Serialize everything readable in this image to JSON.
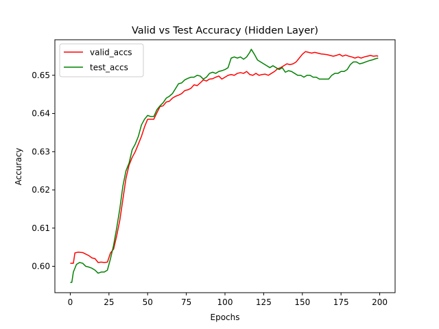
{
  "chart_data": {
    "type": "line",
    "title": "Valid vs Test Accuracy (Hidden Layer)",
    "xlabel": "Epochs",
    "ylabel": "Accuracy",
    "xlim": [
      -9.95,
      209.95
    ],
    "ylim": [
      0.5931,
      0.6593
    ],
    "xticks": [
      0,
      25,
      50,
      75,
      100,
      125,
      150,
      175,
      200
    ],
    "yticks": [
      0.6,
      0.61,
      0.62,
      0.63,
      0.64,
      0.65
    ],
    "ytick_labels": [
      "0.60",
      "0.61",
      "0.62",
      "0.63",
      "0.64",
      "0.65"
    ],
    "grid": false,
    "legend_position": "upper-left",
    "series": [
      {
        "name": "valid_accs",
        "color": "#ff0000",
        "points": [
          [
            0,
            0.6008
          ],
          [
            2,
            0.6008
          ],
          [
            3,
            0.6035
          ],
          [
            5,
            0.6037
          ],
          [
            8,
            0.6036
          ],
          [
            10,
            0.6032
          ],
          [
            12,
            0.6028
          ],
          [
            14,
            0.6022
          ],
          [
            16,
            0.602
          ],
          [
            18,
            0.601
          ],
          [
            20,
            0.6011
          ],
          [
            22,
            0.601
          ],
          [
            24,
            0.6011
          ],
          [
            26,
            0.6035
          ],
          [
            28,
            0.6045
          ],
          [
            30,
            0.608
          ],
          [
            32,
            0.612
          ],
          [
            34,
            0.6175
          ],
          [
            36,
            0.623
          ],
          [
            38,
            0.6265
          ],
          [
            40,
            0.6285
          ],
          [
            42,
            0.63
          ],
          [
            44,
            0.632
          ],
          [
            46,
            0.634
          ],
          [
            48,
            0.6365
          ],
          [
            50,
            0.6385
          ],
          [
            52,
            0.6385
          ],
          [
            54,
            0.6385
          ],
          [
            56,
            0.6402
          ],
          [
            58,
            0.6418
          ],
          [
            60,
            0.642
          ],
          [
            62,
            0.643
          ],
          [
            64,
            0.6432
          ],
          [
            66,
            0.644
          ],
          [
            68,
            0.6445
          ],
          [
            70,
            0.6448
          ],
          [
            72,
            0.6452
          ],
          [
            74,
            0.646
          ],
          [
            76,
            0.6462
          ],
          [
            78,
            0.6466
          ],
          [
            80,
            0.6475
          ],
          [
            82,
            0.6473
          ],
          [
            84,
            0.648
          ],
          [
            86,
            0.6488
          ],
          [
            88,
            0.6485
          ],
          [
            90,
            0.649
          ],
          [
            92,
            0.6491
          ],
          [
            94,
            0.6495
          ],
          [
            96,
            0.6498
          ],
          [
            98,
            0.649
          ],
          [
            100,
            0.6495
          ],
          [
            102,
            0.65
          ],
          [
            104,
            0.6502
          ],
          [
            106,
            0.65
          ],
          [
            108,
            0.6505
          ],
          [
            110,
            0.6507
          ],
          [
            112,
            0.6505
          ],
          [
            114,
            0.651
          ],
          [
            116,
            0.6502
          ],
          [
            118,
            0.65
          ],
          [
            120,
            0.6505
          ],
          [
            122,
            0.65
          ],
          [
            124,
            0.6502
          ],
          [
            126,
            0.6503
          ],
          [
            128,
            0.65
          ],
          [
            130,
            0.6505
          ],
          [
            132,
            0.651
          ],
          [
            134,
            0.6517
          ],
          [
            136,
            0.652
          ],
          [
            138,
            0.6525
          ],
          [
            140,
            0.653
          ],
          [
            142,
            0.6528
          ],
          [
            144,
            0.653
          ],
          [
            146,
            0.6535
          ],
          [
            148,
            0.6545
          ],
          [
            150,
            0.6555
          ],
          [
            152,
            0.6562
          ],
          [
            154,
            0.656
          ],
          [
            156,
            0.6558
          ],
          [
            158,
            0.656
          ],
          [
            160,
            0.6558
          ],
          [
            162,
            0.6556
          ],
          [
            164,
            0.6555
          ],
          [
            166,
            0.6554
          ],
          [
            168,
            0.6552
          ],
          [
            170,
            0.655
          ],
          [
            172,
            0.6552
          ],
          [
            174,
            0.6555
          ],
          [
            176,
            0.655
          ],
          [
            178,
            0.6553
          ],
          [
            180,
            0.655
          ],
          [
            182,
            0.6548
          ],
          [
            184,
            0.6545
          ],
          [
            186,
            0.6548
          ],
          [
            188,
            0.6545
          ],
          [
            190,
            0.6548
          ],
          [
            192,
            0.655
          ],
          [
            194,
            0.6552
          ],
          [
            196,
            0.655
          ],
          [
            198,
            0.6551
          ],
          [
            199,
            0.655
          ]
        ]
      },
      {
        "name": "test_accs",
        "color": "#008000",
        "points": [
          [
            0,
            0.5958
          ],
          [
            1,
            0.5958
          ],
          [
            2,
            0.5985
          ],
          [
            4,
            0.6005
          ],
          [
            6,
            0.601
          ],
          [
            8,
            0.6008
          ],
          [
            10,
            0.6
          ],
          [
            12,
            0.5998
          ],
          [
            14,
            0.5995
          ],
          [
            16,
            0.599
          ],
          [
            18,
            0.5982
          ],
          [
            20,
            0.5985
          ],
          [
            22,
            0.5985
          ],
          [
            24,
            0.599
          ],
          [
            26,
            0.602
          ],
          [
            28,
            0.6055
          ],
          [
            30,
            0.61
          ],
          [
            32,
            0.615
          ],
          [
            34,
            0.621
          ],
          [
            36,
            0.625
          ],
          [
            38,
            0.627
          ],
          [
            40,
            0.6305
          ],
          [
            42,
            0.632
          ],
          [
            44,
            0.634
          ],
          [
            46,
            0.637
          ],
          [
            48,
            0.6385
          ],
          [
            50,
            0.6395
          ],
          [
            52,
            0.6392
          ],
          [
            54,
            0.6392
          ],
          [
            56,
            0.641
          ],
          [
            58,
            0.642
          ],
          [
            60,
            0.6428
          ],
          [
            62,
            0.644
          ],
          [
            64,
            0.6445
          ],
          [
            66,
            0.6452
          ],
          [
            68,
            0.6465
          ],
          [
            70,
            0.6478
          ],
          [
            72,
            0.648
          ],
          [
            74,
            0.6488
          ],
          [
            76,
            0.6492
          ],
          [
            78,
            0.6495
          ],
          [
            80,
            0.6495
          ],
          [
            82,
            0.65
          ],
          [
            84,
            0.6498
          ],
          [
            86,
            0.649
          ],
          [
            88,
            0.6495
          ],
          [
            90,
            0.6505
          ],
          [
            92,
            0.6508
          ],
          [
            94,
            0.6505
          ],
          [
            96,
            0.651
          ],
          [
            98,
            0.6512
          ],
          [
            100,
            0.6515
          ],
          [
            102,
            0.652
          ],
          [
            104,
            0.6545
          ],
          [
            106,
            0.6548
          ],
          [
            108,
            0.6545
          ],
          [
            110,
            0.6548
          ],
          [
            112,
            0.6542
          ],
          [
            114,
            0.6548
          ],
          [
            116,
            0.656
          ],
          [
            117,
            0.6568
          ],
          [
            119,
            0.6555
          ],
          [
            121,
            0.654
          ],
          [
            123,
            0.6535
          ],
          [
            125,
            0.653
          ],
          [
            127,
            0.6525
          ],
          [
            129,
            0.652
          ],
          [
            131,
            0.6525
          ],
          [
            133,
            0.652
          ],
          [
            135,
            0.6515
          ],
          [
            137,
            0.652
          ],
          [
            139,
            0.6508
          ],
          [
            141,
            0.6512
          ],
          [
            143,
            0.651
          ],
          [
            145,
            0.6505
          ],
          [
            147,
            0.65
          ],
          [
            149,
            0.65
          ],
          [
            151,
            0.6495
          ],
          [
            153,
            0.65
          ],
          [
            155,
            0.65
          ],
          [
            157,
            0.6495
          ],
          [
            159,
            0.6495
          ],
          [
            161,
            0.649
          ],
          [
            163,
            0.649
          ],
          [
            165,
            0.649
          ],
          [
            167,
            0.649
          ],
          [
            169,
            0.65
          ],
          [
            171,
            0.6505
          ],
          [
            173,
            0.6505
          ],
          [
            175,
            0.651
          ],
          [
            177,
            0.651
          ],
          [
            179,
            0.6515
          ],
          [
            181,
            0.6528
          ],
          [
            183,
            0.6535
          ],
          [
            185,
            0.6535
          ],
          [
            187,
            0.653
          ],
          [
            189,
            0.6532
          ],
          [
            191,
            0.6535
          ],
          [
            193,
            0.6538
          ],
          [
            195,
            0.654
          ],
          [
            197,
            0.6543
          ],
          [
            199,
            0.6545
          ]
        ]
      }
    ]
  }
}
